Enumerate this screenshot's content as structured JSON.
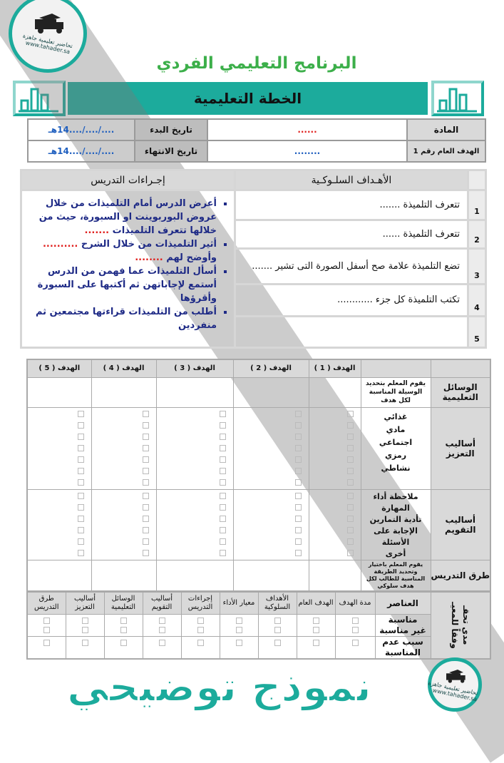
{
  "title": "البرنامج التعليمي الفردي",
  "banner": "الخطة التعليمية",
  "info": {
    "subject_label": "المادة",
    "subject_value": "......",
    "start_label": "تاريخ البدء",
    "start_value": "..../..../....14هـ",
    "goal_label": "الهدف العام رقم 1",
    "goal_value": "........",
    "end_label": "تاريخ الانتهاء",
    "end_value": "..../..../....14هـ"
  },
  "plan": {
    "objectives_header": "الأهـداف السلـوكـية",
    "procedures_header": "إجـراءات التدريس",
    "objectives": [
      {
        "num": "1",
        "text": "تتعرف التلميذة ......."
      },
      {
        "num": "2",
        "text": "تتعرف التلميذة ......"
      },
      {
        "num": "3",
        "text": "تضع التلميذة علامة صح أسفل الصورة التى تشير ......."
      },
      {
        "num": "4",
        "text": "تكتب التلميذة كل جزء ............"
      },
      {
        "num": "5",
        "text": ""
      }
    ],
    "procedures": [
      {
        "text": "أعرض الدرس أمام التلميذات من خلال عروض البوربوينت او السبورة، حيث من خلالها تتعرف التلميذات",
        "dots": " ......."
      },
      {
        "text": "أثير التلميذات من خلال الشرح",
        "dots": " ..........",
        "text2": "وأوضح لهم",
        "dots2": " ........"
      },
      {
        "text": "أسأل التلميذات عما فهمن من الدرس أستمع لإجاباتهن ثم أكتبها على السبورة وأقرؤها"
      },
      {
        "text": "أطلب من التلميذات قراءتها مجتمعين ثم منفردين"
      }
    ]
  },
  "grid": {
    "goal_headers": [
      "الهدف ( 1 )",
      "الهدف ( 2 )",
      "الهدف ( 3 )",
      "الهدف ( 4 )",
      "الهدف ( 5 )"
    ],
    "rows": {
      "aids_label": "الوسائل التعليمية",
      "aids_desc": "يقوم المعلم بتحديد الوسيلة المناسبة لكل هدف",
      "reinforce_label": "أساليب التعزيز",
      "reinforce_items": [
        "غذائي",
        "مادي",
        "اجتماعي",
        "رمزي",
        "نشاطي"
      ],
      "eval_label": "أساليب التقويم",
      "eval_items": [
        "ملاحظة أداء المهارة",
        "تأدية التمارين",
        "الإجابة على الأسئلة",
        "أخرى"
      ],
      "methods_label": "طرق التدريس",
      "methods_desc": "يقوم المعلم باختيار وتحديد الطريقة المناسبة للطالب لكل هدف سلوكي"
    }
  },
  "evaluation": {
    "side_label_1": "مدى تحقـ",
    "side_label_2": "وفقاً للمعيـ",
    "elements_label": "العناصر",
    "columns": [
      "مدة الهدف",
      "الهدف العام",
      "الأهداف السلوكية",
      "معيار الأداء",
      "إجراءات التدريس",
      "أساليب التقويم",
      "الوسائل التعليمية",
      "أساليب التعزيز",
      "طرق التدريس"
    ],
    "suitable": "مناسبة",
    "unsuitable": "غير مناسبة",
    "reason": "سبب عدم المناسبة"
  },
  "watermark": "نموذج توضيحي",
  "logo": {
    "name": "تحاضير تعليمية جاهزة",
    "url": "www.tahader.sa"
  },
  "colors": {
    "teal": "#1cab9c",
    "title_green": "#3caf4a",
    "procedure_navy": "#1e2a86",
    "red_dots": "#e0201e",
    "blue_values": "#1f5fbf"
  }
}
